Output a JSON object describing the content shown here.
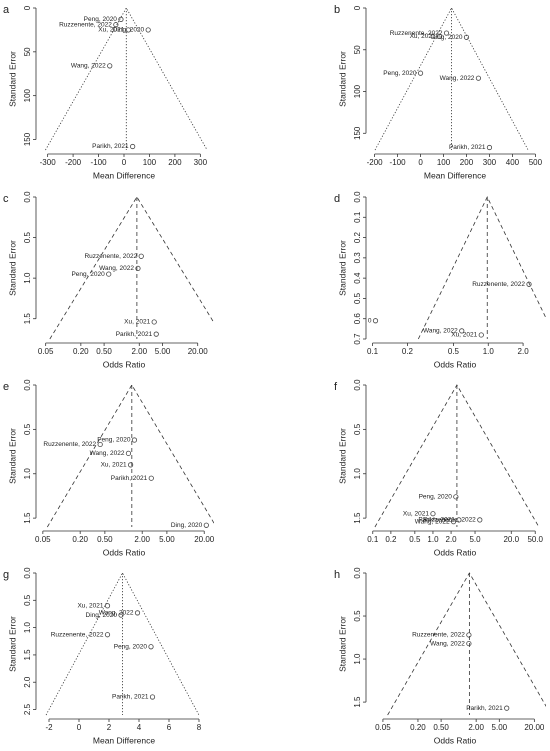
{
  "chart_data": [
    {
      "type": "funnel",
      "panel": "a",
      "xlabel": "Mean Difference",
      "ylabel": "Standard Error",
      "log_x": false,
      "line_style": "dotted",
      "xlim": [
        -330,
        330
      ],
      "ylim": [
        0,
        162
      ],
      "xticks": [
        -300,
        -200,
        -100,
        0,
        100,
        200,
        300
      ],
      "yticks": [
        0,
        50,
        100,
        150
      ],
      "summary": 9,
      "point_labels": [
        "Peng, 2020",
        "Ruzzenente, 2022",
        "Xu, 2021",
        "Ding, 2020",
        "Wang, 2022",
        "Parikh, 2021"
      ],
      "x": [
        -12,
        -32,
        17,
        95,
        -56,
        34
      ],
      "values": [
        13,
        19,
        25,
        25,
        66,
        158
      ]
    },
    {
      "type": "funnel",
      "panel": "b",
      "xlabel": "Mean Difference",
      "ylabel": "Standard Error",
      "log_x": false,
      "line_style": "dotted",
      "xlim": [
        -220,
        520
      ],
      "ylim": [
        0,
        170
      ],
      "xticks": [
        -200,
        -100,
        0,
        100,
        200,
        300,
        400,
        500
      ],
      "yticks": [
        0,
        50,
        100,
        150
      ],
      "summary": 135,
      "point_labels": [
        "Ruzzenente, 2022",
        "Xu, 2021",
        "Ding, 2020",
        "Peng, 2020",
        "Wang, 2022",
        "Parikh, 2021"
      ],
      "x": [
        113,
        83,
        200,
        0,
        252,
        300
      ],
      "values": [
        30,
        34,
        35,
        78,
        84,
        167
      ]
    },
    {
      "type": "funnel",
      "panel": "c",
      "xlabel": "Odds Ratio",
      "ylabel": "Standard Error",
      "log_x": true,
      "line_style": "dashed",
      "xlim": [
        0.04,
        30
      ],
      "ylim": [
        0,
        1.75
      ],
      "xticks": [
        0.05,
        {
          "value": 0.2,
          "label": "0.20"
        },
        {
          "value": 0.5,
          "label": "0.50"
        },
        {
          "value": 2,
          "label": "2.00"
        },
        {
          "value": 5,
          "label": "5.00"
        },
        {
          "value": 20,
          "label": "20.00"
        }
      ],
      "yticks": [
        {
          "value": 0,
          "label": "0.0"
        },
        0.5,
        {
          "value": 1,
          "label": "1.0"
        },
        1.5
      ],
      "summary": 1.82,
      "point_labels": [
        "Ruzzenente, 2022",
        "Wang, 2022",
        "Peng, 2020",
        "Xu, 2021",
        "Parikh, 2021"
      ],
      "x": [
        2.16,
        1.9,
        0.6,
        3.6,
        3.9
      ],
      "values": [
        0.73,
        0.88,
        0.95,
        1.54,
        1.69
      ]
    },
    {
      "type": "funnel",
      "panel": "d",
      "xlabel": "Odds Ratio",
      "ylabel": "Standard Error",
      "log_x": true,
      "line_style": "dashed",
      "xlim": [
        0.095,
        2.8
      ],
      "ylim": [
        0,
        0.7
      ],
      "xticks": [
        0.1,
        0.2,
        0.5,
        {
          "value": 1,
          "label": "1.0"
        },
        {
          "value": 2,
          "label": "2.0"
        }
      ],
      "yticks": [
        {
          "value": 0,
          "label": "0.0"
        },
        0.1,
        0.2,
        0.3,
        0.4,
        0.5,
        0.6,
        0.7
      ],
      "summary": 0.98,
      "point_labels": [
        "Ruzzenente, 2022",
        "0",
        "Wang, 2022",
        "Xu, 2021"
      ],
      "x": [
        2.25,
        0.106,
        0.59,
        0.87
      ],
      "values": [
        0.43,
        0.61,
        0.66,
        0.68
      ]
    },
    {
      "type": "funnel",
      "panel": "e",
      "xlabel": "Odds Ratio",
      "ylabel": "Standard Error",
      "log_x": true,
      "line_style": "dashed",
      "xlim": [
        0.045,
        23
      ],
      "ylim": [
        0,
        1.6
      ],
      "xticks": [
        0.05,
        {
          "value": 0.2,
          "label": "0.20"
        },
        {
          "value": 0.5,
          "label": "0.50"
        },
        {
          "value": 2,
          "label": "2.00"
        },
        {
          "value": 5,
          "label": "5.00"
        },
        {
          "value": 20,
          "label": "20.00"
        }
      ],
      "yticks": [
        {
          "value": 0,
          "label": "0.0"
        },
        0.5,
        {
          "value": 1,
          "label": "1.0"
        },
        1.5
      ],
      "summary": 1.36,
      "point_labels": [
        "Peng, 2020",
        "Ruzzenente, 2022",
        "Wang, 2022",
        "Xu, 2021",
        "Parikh, 2021",
        "Ding, 2020"
      ],
      "x": [
        1.5,
        0.42,
        1.2,
        1.3,
        2.8,
        21.6
      ],
      "values": [
        0.62,
        0.67,
        0.77,
        0.9,
        1.05,
        1.58
      ]
    },
    {
      "type": "funnel",
      "panel": "f",
      "xlabel": "Odds Ratio",
      "ylabel": "Standard Error",
      "log_x": true,
      "line_style": "dashed",
      "xlim": [
        0.09,
        60
      ],
      "ylim": [
        0,
        1.6
      ],
      "xticks": [
        0.1,
        0.2,
        0.5,
        {
          "value": 1,
          "label": "1.0"
        },
        {
          "value": 2,
          "label": "2.0"
        },
        {
          "value": 5,
          "label": "5.0"
        },
        {
          "value": 20,
          "label": "20.0"
        },
        {
          "value": 50,
          "label": "50.0"
        }
      ],
      "yticks": [
        {
          "value": 0,
          "label": "0.0"
        },
        0.5,
        {
          "value": 1,
          "label": "1.0"
        },
        1.5
      ],
      "summary": 2.5,
      "point_labels": [
        "Peng, 2020",
        "Xu, 2021",
        "Parikh, 2021",
        "Wang, 2022",
        "Ruzzenente, 2022"
      ],
      "x": [
        2.4,
        1.0,
        2.7,
        2.2,
        6.0
      ],
      "values": [
        1.26,
        1.45,
        1.52,
        1.54,
        1.52
      ]
    },
    {
      "type": "funnel",
      "panel": "g",
      "xlabel": "Mean Difference",
      "ylabel": "Standard Error",
      "log_x": false,
      "line_style": "dotted",
      "xlim": [
        -2.6,
        8.6
      ],
      "ylim": [
        0,
        2.6
      ],
      "xticks": [
        -2,
        0,
        2,
        4,
        6,
        8
      ],
      "yticks": [
        {
          "value": 0,
          "label": "0.0"
        },
        0.5,
        {
          "value": 1,
          "label": "1.0"
        },
        1.5,
        {
          "value": 2,
          "label": "2.0"
        },
        2.5
      ],
      "summary": 2.9,
      "point_labels": [
        "Xu, 2021",
        "Ding, 2020",
        "Wang, 2022",
        "Ruzzenente, 2022",
        "Peng, 2020",
        "Parikh, 2021"
      ],
      "x": [
        1.9,
        2.8,
        3.9,
        1.9,
        4.8,
        4.9
      ],
      "values": [
        0.6,
        0.77,
        0.73,
        1.13,
        1.35,
        2.27
      ]
    },
    {
      "type": "funnel",
      "panel": "h",
      "xlabel": "Odds Ratio",
      "ylabel": "Standard Error",
      "log_x": true,
      "line_style": "dashed",
      "xlim": [
        0.03,
        25
      ],
      "ylim": [
        0,
        1.65
      ],
      "xticks": [
        0.05,
        {
          "value": 0.2,
          "label": "0.20"
        },
        {
          "value": 0.5,
          "label": "0.50"
        },
        {
          "value": 2,
          "label": "2.00"
        },
        {
          "value": 5,
          "label": "5.00"
        },
        {
          "value": 20,
          "label": "20.00"
        }
      ],
      "yticks": [
        {
          "value": 0,
          "label": "0.0"
        },
        0.5,
        {
          "value": 1,
          "label": "1.0"
        },
        1.5
      ],
      "summary": 1.53,
      "point_labels": [
        "Ruzzenente, 2022",
        "Wang, 2022",
        "Parikh, 2021"
      ],
      "x": [
        1.5,
        1.5,
        6.7
      ],
      "values": [
        0.72,
        0.82,
        1.57
      ]
    }
  ]
}
